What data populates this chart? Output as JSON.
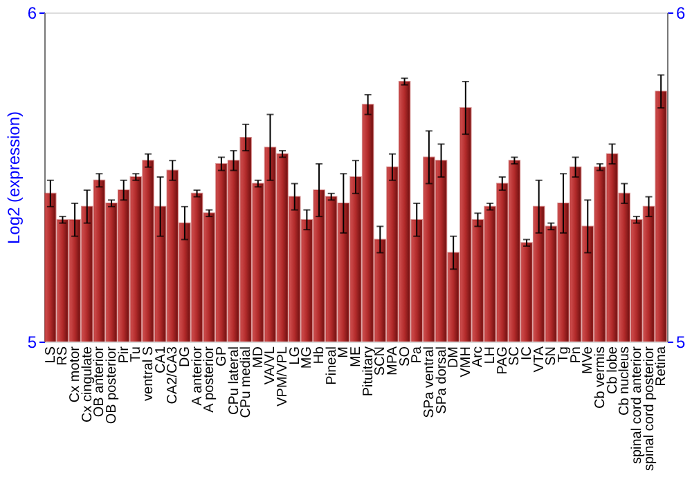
{
  "chart_data": {
    "type": "bar",
    "ylabel": "Log2 (expression)",
    "categories": [
      "LS",
      "RS",
      "Cx motor",
      "Cx cingulate",
      "OB anterior",
      "OB posterior",
      "Pir",
      "Tu",
      "ventral S",
      "CA1",
      "CA2/CA3",
      "DG",
      "A anterior",
      "A posterior",
      "GP",
      "CPu lateral",
      "CPu medial",
      "MD",
      "VA/VL",
      "VPM/VPL",
      "LG",
      "MG",
      "Hb",
      "Pineal",
      "M",
      "ME",
      "Pituitary",
      "SCN",
      "MPA",
      "SO",
      "Pa",
      "SPa ventral",
      "SPa dorsal",
      "DM",
      "VMH",
      "Arc",
      "LH",
      "PAG",
      "SC",
      "IC",
      "VTA",
      "SN",
      "Tg",
      "Pn",
      "MVe",
      "Cb vermis",
      "Cb lobe",
      "Cb nucleus",
      "spinal cord anterior",
      "spinal cord posterior",
      "Retina"
    ],
    "values": [
      5.45,
      5.37,
      5.37,
      5.41,
      5.49,
      5.42,
      5.46,
      5.5,
      5.55,
      5.41,
      5.52,
      5.36,
      5.45,
      5.39,
      5.54,
      5.55,
      5.62,
      5.48,
      5.59,
      5.57,
      5.44,
      5.37,
      5.46,
      5.44,
      5.42,
      5.5,
      5.72,
      5.31,
      5.53,
      5.79,
      5.37,
      5.56,
      5.55,
      5.27,
      5.71,
      5.37,
      5.41,
      5.48,
      5.55,
      5.3,
      5.41,
      5.35,
      5.42,
      5.53,
      5.35,
      5.53,
      5.57,
      5.45,
      5.37,
      5.41,
      5.76
    ],
    "errors": [
      0.04,
      0.01,
      0.05,
      0.05,
      0.02,
      0.01,
      0.03,
      0.01,
      0.02,
      0.09,
      0.03,
      0.05,
      0.01,
      0.01,
      0.02,
      0.03,
      0.04,
      0.01,
      0.1,
      0.01,
      0.04,
      0.03,
      0.08,
      0.01,
      0.09,
      0.05,
      0.03,
      0.04,
      0.04,
      0.01,
      0.05,
      0.08,
      0.05,
      0.05,
      0.08,
      0.02,
      0.01,
      0.02,
      0.01,
      0.01,
      0.08,
      0.01,
      0.09,
      0.03,
      0.08,
      0.01,
      0.03,
      0.03,
      0.01,
      0.03,
      0.05
    ],
    "color": "#b22a2a",
    "ylim": [
      5,
      6
    ],
    "yticks": [
      5,
      6
    ],
    "y2lim": [
      5,
      6
    ],
    "y2ticks": [
      5,
      6
    ],
    "grid": false
  }
}
